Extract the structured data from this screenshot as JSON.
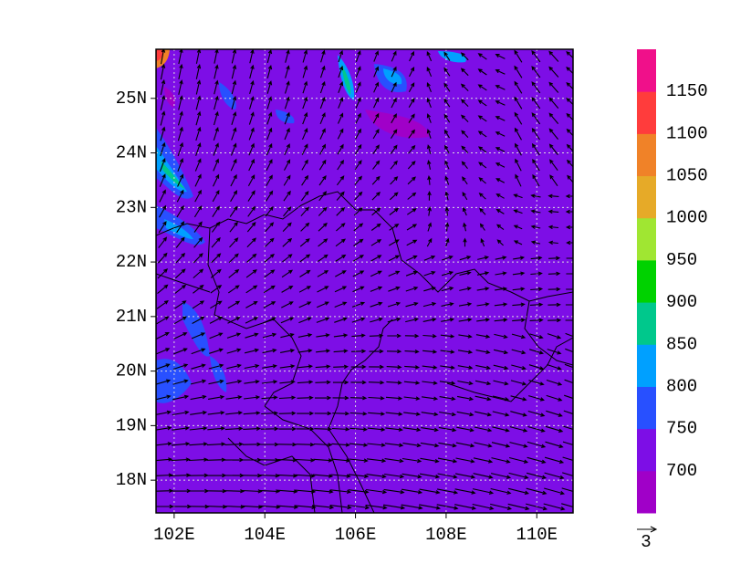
{
  "map": {
    "xlim": [
      101.6,
      110.8
    ],
    "ylim": [
      17.4,
      25.9
    ],
    "xticks": [
      {
        "value": 102,
        "label": "102E"
      },
      {
        "value": 104,
        "label": "104E"
      },
      {
        "value": 106,
        "label": "106E"
      },
      {
        "value": 108,
        "label": "108E"
      },
      {
        "value": 110,
        "label": "110E"
      }
    ],
    "yticks": [
      {
        "value": 18,
        "label": "18N"
      },
      {
        "value": 19,
        "label": "19N"
      },
      {
        "value": 20,
        "label": "20N"
      },
      {
        "value": 21,
        "label": "21N"
      },
      {
        "value": 22,
        "label": "22N"
      },
      {
        "value": 23,
        "label": "23N"
      },
      {
        "value": 24,
        "label": "24N"
      },
      {
        "value": 25,
        "label": "25N"
      }
    ],
    "background_color": "#7d0ee6",
    "colorbar": {
      "levels": [
        700,
        750,
        800,
        850,
        900,
        950,
        1000,
        1050,
        1100,
        1150
      ],
      "colors": [
        "#a000c8",
        "#7d0ee6",
        "#2850ff",
        "#00a0ff",
        "#00c88c",
        "#00d200",
        "#a0e632",
        "#e6aa28",
        "#f08228",
        "#ff3c3c",
        "#f0108a"
      ]
    },
    "vector_reference": "3"
  }
}
